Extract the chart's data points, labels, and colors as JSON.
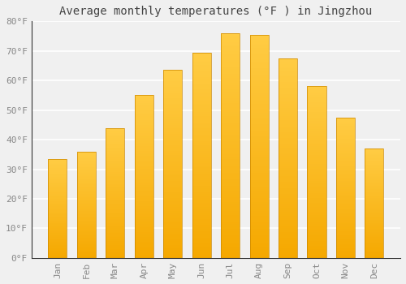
{
  "title": "Average monthly temperatures (°F ) in Jingzhou",
  "months": [
    "Jan",
    "Feb",
    "Mar",
    "Apr",
    "May",
    "Jun",
    "Jul",
    "Aug",
    "Sep",
    "Oct",
    "Nov",
    "Dec"
  ],
  "values": [
    33.5,
    36.0,
    44.0,
    55.0,
    63.5,
    69.5,
    76.0,
    75.5,
    67.5,
    58.0,
    47.5,
    37.0
  ],
  "bar_color_top": "#FFCC44",
  "bar_color_bottom": "#F5A800",
  "bar_edge_color": "#CC8800",
  "background_color": "#f0f0f0",
  "grid_color": "#ffffff",
  "ylim": [
    0,
    80
  ],
  "yticks": [
    0,
    10,
    20,
    30,
    40,
    50,
    60,
    70,
    80
  ],
  "ytick_labels": [
    "0°F",
    "10°F",
    "20°F",
    "30°F",
    "40°F",
    "50°F",
    "60°F",
    "70°F",
    "80°F"
  ],
  "title_fontsize": 10,
  "tick_fontsize": 8,
  "tick_font_color": "#888888",
  "bar_width": 0.65
}
